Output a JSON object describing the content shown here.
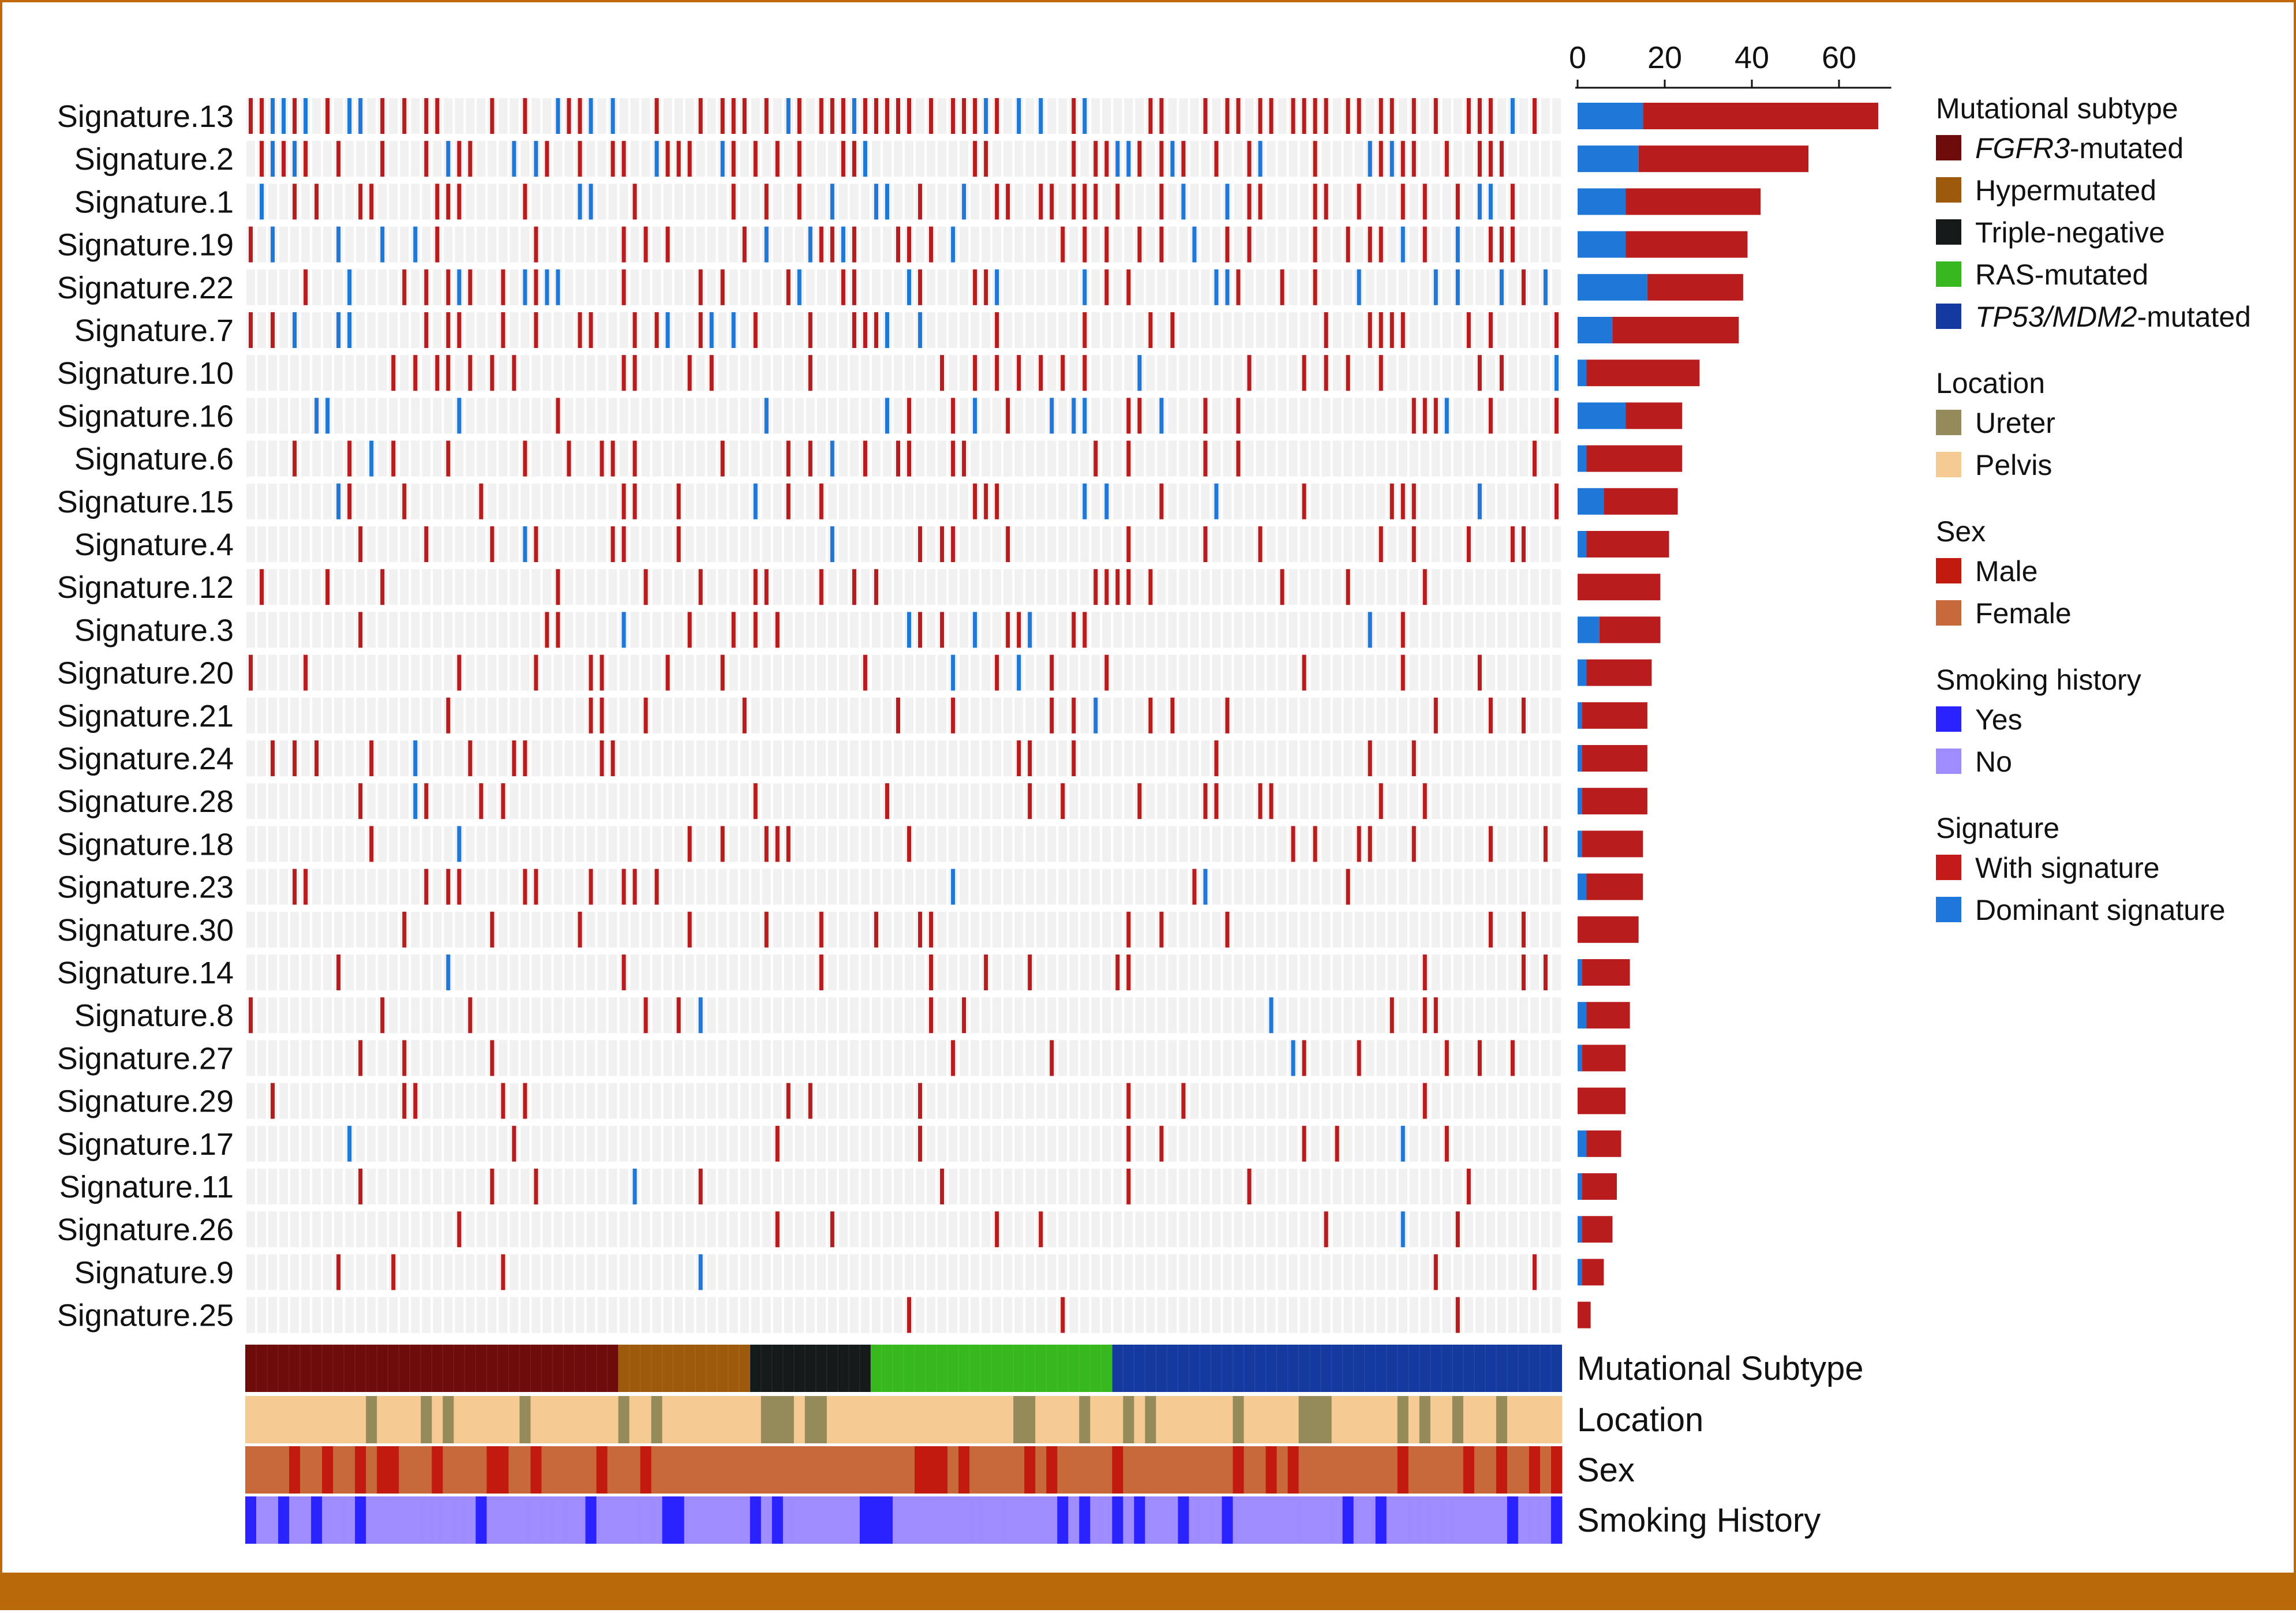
{
  "chart_data": {
    "type": "heatmap",
    "title": "",
    "signature_rows": [
      "Signature.13",
      "Signature.2",
      "Signature.1",
      "Signature.19",
      "Signature.22",
      "Signature.7",
      "Signature.10",
      "Signature.16",
      "Signature.6",
      "Signature.15",
      "Signature.4",
      "Signature.12",
      "Signature.3",
      "Signature.20",
      "Signature.21",
      "Signature.24",
      "Signature.28",
      "Signature.18",
      "Signature.23",
      "Signature.30",
      "Signature.14",
      "Signature.8",
      "Signature.27",
      "Signature.29",
      "Signature.17",
      "Signature.11",
      "Signature.26",
      "Signature.9",
      "Signature.25"
    ],
    "sample_count": 120,
    "bar_axis": {
      "ticks": [
        0,
        20,
        40,
        60
      ],
      "range": [
        0,
        72
      ]
    },
    "bar_counts": [
      {
        "signature": "Signature.13",
        "dominant": 15,
        "with": 54
      },
      {
        "signature": "Signature.2",
        "dominant": 14,
        "with": 39
      },
      {
        "signature": "Signature.1",
        "dominant": 11,
        "with": 31
      },
      {
        "signature": "Signature.19",
        "dominant": 11,
        "with": 28
      },
      {
        "signature": "Signature.22",
        "dominant": 16,
        "with": 22
      },
      {
        "signature": "Signature.7",
        "dominant": 8,
        "with": 29
      },
      {
        "signature": "Signature.10",
        "dominant": 2,
        "with": 26
      },
      {
        "signature": "Signature.16",
        "dominant": 11,
        "with": 13
      },
      {
        "signature": "Signature.6",
        "dominant": 2,
        "with": 22
      },
      {
        "signature": "Signature.15",
        "dominant": 6,
        "with": 17
      },
      {
        "signature": "Signature.4",
        "dominant": 2,
        "with": 19
      },
      {
        "signature": "Signature.12",
        "dominant": 0,
        "with": 19
      },
      {
        "signature": "Signature.3",
        "dominant": 5,
        "with": 14
      },
      {
        "signature": "Signature.20",
        "dominant": 2,
        "with": 15
      },
      {
        "signature": "Signature.21",
        "dominant": 1,
        "with": 15
      },
      {
        "signature": "Signature.24",
        "dominant": 1,
        "with": 15
      },
      {
        "signature": "Signature.28",
        "dominant": 1,
        "with": 15
      },
      {
        "signature": "Signature.18",
        "dominant": 1,
        "with": 14
      },
      {
        "signature": "Signature.23",
        "dominant": 2,
        "with": 13
      },
      {
        "signature": "Signature.30",
        "dominant": 0,
        "with": 14
      },
      {
        "signature": "Signature.14",
        "dominant": 1,
        "with": 11
      },
      {
        "signature": "Signature.8",
        "dominant": 2,
        "with": 10
      },
      {
        "signature": "Signature.27",
        "dominant": 1,
        "with": 10
      },
      {
        "signature": "Signature.29",
        "dominant": 0,
        "with": 11
      },
      {
        "signature": "Signature.17",
        "dominant": 2,
        "with": 8
      },
      {
        "signature": "Signature.11",
        "dominant": 1,
        "with": 8
      },
      {
        "signature": "Signature.26",
        "dominant": 1,
        "with": 7
      },
      {
        "signature": "Signature.9",
        "dominant": 1,
        "with": 5
      },
      {
        "signature": "Signature.25",
        "dominant": 0,
        "with": 3
      }
    ],
    "annotation_tracks": [
      {
        "name": "Mutational Subtype",
        "segments": [
          {
            "label": "FGFR3-mutated",
            "samples": 34
          },
          {
            "label": "Hypermutated",
            "samples": 12
          },
          {
            "label": "Triple-negative",
            "samples": 11
          },
          {
            "label": "RAS-mutated",
            "samples": 22
          },
          {
            "label": "TP53/MDM2-mutated",
            "samples": 41
          }
        ]
      },
      {
        "name": "Location",
        "categories": [
          "Ureter",
          "Pelvis"
        ]
      },
      {
        "name": "Sex",
        "categories": [
          "Male",
          "Female"
        ]
      },
      {
        "name": "Smoking History",
        "categories": [
          "Yes",
          "No"
        ]
      }
    ]
  },
  "legend": {
    "groups": [
      {
        "title": "Mutational subtype",
        "items": [
          {
            "italic": "FGFR3",
            "rest": "-mutated",
            "color": "#6e0b0b"
          },
          {
            "italic": "",
            "rest": "Hypermutated",
            "color": "#9e5a0c"
          },
          {
            "italic": "",
            "rest": "Triple-negative",
            "color": "#141a1a"
          },
          {
            "italic": "",
            "rest": "RAS-mutated",
            "color": "#37b81e"
          },
          {
            "italic": "TP53/MDM2",
            "rest": "-mutated",
            "color": "#143aa0"
          }
        ]
      },
      {
        "title": "Location",
        "items": [
          {
            "italic": "",
            "rest": "Ureter",
            "color": "#948a5a"
          },
          {
            "italic": "",
            "rest": "Pelvis",
            "color": "#f5ca93"
          }
        ]
      },
      {
        "title": "Sex",
        "items": [
          {
            "italic": "",
            "rest": "Male",
            "color": "#c21a0e"
          },
          {
            "italic": "",
            "rest": "Female",
            "color": "#c8693c"
          }
        ]
      },
      {
        "title": "Smoking history",
        "items": [
          {
            "italic": "",
            "rest": "Yes",
            "color": "#2a22ff"
          },
          {
            "italic": "",
            "rest": "No",
            "color": "#9f8cff"
          }
        ]
      },
      {
        "title": "Signature",
        "items": [
          {
            "italic": "",
            "rest": "With signature",
            "color": "#c41a1a"
          },
          {
            "italic": "",
            "rest": "Dominant signature",
            "color": "#1e78dc"
          }
        ]
      }
    ]
  },
  "colors": {
    "with_signature": "#b81c1c",
    "dominant_signature": "#1f78d8",
    "cell_background": "#f1f1f1",
    "frame_border": "#c0680a",
    "bottom_band": "#b86a0a",
    "subtype": [
      "#6e0b0b",
      "#9e5a0c",
      "#141a1a",
      "#37b81e",
      "#143aa0"
    ],
    "location": [
      "#948a5a",
      "#f5ca93"
    ],
    "sex": [
      "#c21a0e",
      "#c8693c"
    ],
    "smoking": [
      "#2a22ff",
      "#9f8cff"
    ]
  }
}
